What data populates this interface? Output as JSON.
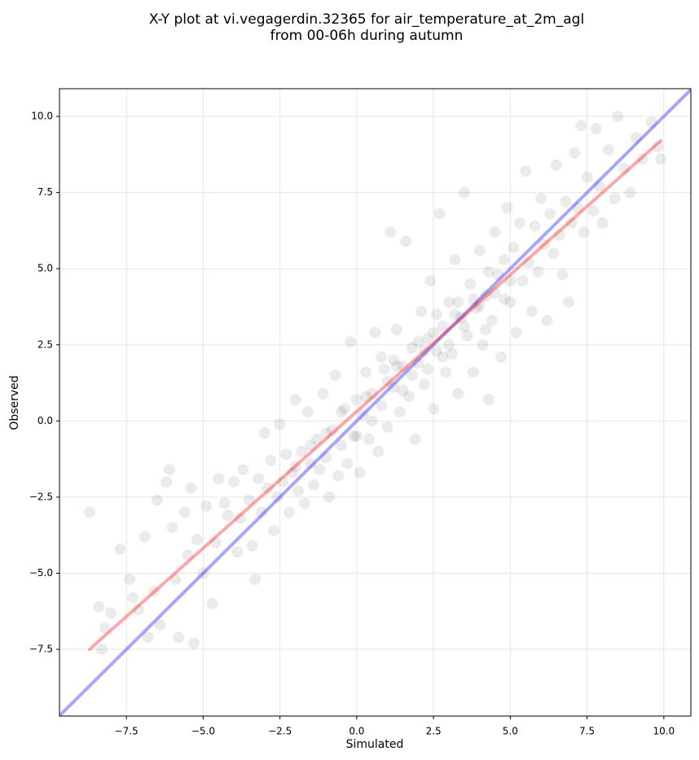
{
  "chart_data": {
    "type": "scatter",
    "title": [
      "X-Y plot at vi.vegagerdin.32365 for air_temperature_at_2m_agl",
      "from 00-06h during autumn"
    ],
    "x_label": "Simulated",
    "y_label": "Observed",
    "xlim": [
      -9.68,
      10.88
    ],
    "ylim": [
      -9.69,
      10.91
    ],
    "xticks": [
      {
        "value": -7.5,
        "label": "−7.5"
      },
      {
        "value": -5,
        "label": "−5.0"
      },
      {
        "value": -2.5,
        "label": "−2.5"
      },
      {
        "value": 0,
        "label": "0.0"
      },
      2.5,
      {
        "value": 5,
        "label": "5.0"
      },
      7.5,
      {
        "value": 10,
        "label": "10.0"
      }
    ],
    "yticks": [
      {
        "value": -7.5,
        "label": "−7.5"
      },
      {
        "value": -5,
        "label": "−5.0"
      },
      {
        "value": -2.5,
        "label": "−2.5"
      },
      {
        "value": 0,
        "label": "0.0"
      },
      2.5,
      {
        "value": 5,
        "label": "5.0"
      },
      7.5,
      {
        "value": 10,
        "label": "10.0"
      }
    ],
    "grid": true,
    "point_color": "#000000",
    "x": [
      -8.7,
      -8.4,
      -8.3,
      -8.2,
      -8.0,
      -7.7,
      -7.4,
      -7.3,
      -7.1,
      -6.9,
      -6.8,
      -6.6,
      -6.5,
      -6.4,
      -6.2,
      -6.1,
      -6.0,
      -5.9,
      -5.8,
      -5.6,
      -5.5,
      -5.4,
      -5.3,
      -5.2,
      -5.0,
      -4.9,
      -4.7,
      -4.6,
      -4.5,
      -4.3,
      -4.2,
      -4.0,
      -3.9,
      -3.8,
      -3.7,
      -3.5,
      -3.4,
      -3.3,
      -3.2,
      -3.1,
      -3.0,
      -2.9,
      -2.8,
      -2.7,
      -2.6,
      -2.5,
      -2.4,
      -2.3,
      -2.2,
      -2.1,
      -2.0,
      -1.9,
      -1.8,
      -1.7,
      -1.6,
      -1.5,
      -1.4,
      -1.3,
      -1.2,
      -1.1,
      -1.0,
      -0.9,
      -0.8,
      -0.7,
      -0.6,
      -0.5,
      -0.4,
      -0.3,
      -0.2,
      -0.1,
      0.0,
      0.1,
      0.2,
      0.3,
      0.4,
      0.5,
      0.6,
      0.7,
      0.8,
      0.9,
      1.0,
      1.1,
      1.2,
      1.3,
      1.4,
      1.5,
      1.6,
      1.7,
      1.8,
      1.9,
      2.0,
      2.1,
      2.2,
      2.3,
      2.4,
      2.5,
      2.6,
      2.7,
      2.8,
      2.9,
      3.0,
      3.1,
      3.2,
      3.3,
      3.4,
      3.5,
      3.6,
      3.7,
      3.8,
      3.9,
      4.0,
      4.1,
      4.2,
      4.3,
      4.4,
      4.5,
      4.6,
      4.7,
      4.8,
      4.9,
      5.0,
      5.1,
      5.2,
      5.3,
      5.4,
      5.5,
      5.6,
      5.7,
      5.8,
      5.9,
      6.0,
      6.1,
      6.2,
      6.3,
      6.4,
      6.5,
      6.6,
      6.7,
      6.8,
      6.9,
      7.0,
      7.1,
      7.2,
      7.3,
      7.4,
      7.5,
      7.7,
      7.8,
      7.9,
      8.0,
      8.2,
      8.4,
      8.5,
      8.7,
      8.9,
      9.1,
      9.3,
      9.6,
      9.8,
      9.9,
      0.5,
      1.0,
      1.5,
      2.0,
      2.5,
      3.0,
      3.5,
      4.0,
      4.5,
      5.0,
      1.2,
      2.2,
      3.2,
      4.2,
      -0.5,
      0.0,
      1.8,
      2.8,
      3.8,
      4.8,
      0.3,
      1.3,
      2.3,
      3.3,
      4.3,
      -1.0,
      -1.5,
      -2.0,
      0.8,
      2.6
    ],
    "y": [
      -3.0,
      -6.1,
      -7.5,
      -6.8,
      -6.3,
      -4.2,
      -5.2,
      -5.8,
      -6.2,
      -3.8,
      -7.1,
      -5.6,
      -2.6,
      -6.7,
      -2.0,
      -1.6,
      -3.5,
      -5.2,
      -7.1,
      -3.0,
      -4.4,
      -2.2,
      -7.3,
      -3.9,
      -5.0,
      -2.8,
      -6.0,
      -4.0,
      -1.9,
      -2.7,
      -3.1,
      -2.0,
      -4.3,
      -3.2,
      -1.6,
      -2.6,
      -4.1,
      -5.2,
      -1.9,
      -3.0,
      -0.4,
      -2.2,
      -1.3,
      -3.6,
      -2.5,
      -0.1,
      -2.0,
      -1.1,
      -3.0,
      -1.7,
      0.7,
      -2.3,
      -1.0,
      -2.7,
      0.3,
      -1.4,
      -2.1,
      -0.6,
      -1.6,
      0.9,
      -1.2,
      -2.5,
      -0.3,
      1.5,
      -1.8,
      -0.8,
      0.4,
      -1.4,
      2.6,
      -0.5,
      0.7,
      -1.7,
      0.2,
      1.6,
      -0.6,
      0.9,
      2.9,
      -1.0,
      0.5,
      1.7,
      -0.2,
      6.2,
      1.1,
      3.0,
      0.3,
      1.8,
      5.9,
      0.8,
      2.4,
      -0.6,
      1.9,
      3.6,
      1.2,
      2.7,
      4.6,
      0.4,
      2.3,
      6.8,
      3.1,
      1.6,
      3.9,
      2.2,
      5.3,
      0.9,
      3.4,
      7.5,
      2.8,
      4.5,
      1.6,
      3.7,
      5.6,
      2.5,
      4.1,
      0.7,
      3.3,
      6.2,
      4.8,
      2.1,
      5.3,
      7.0,
      3.9,
      5.7,
      2.9,
      6.5,
      4.6,
      8.2,
      5.2,
      3.6,
      6.4,
      4.9,
      7.3,
      5.8,
      3.3,
      6.8,
      5.5,
      8.4,
      6.1,
      4.8,
      7.2,
      3.9,
      6.5,
      8.8,
      7.0,
      9.7,
      6.2,
      8.0,
      6.9,
      9.6,
      7.7,
      6.5,
      8.9,
      7.3,
      10.0,
      8.3,
      7.5,
      9.3,
      8.6,
      9.8,
      9.0,
      8.6,
      0.0,
      1.3,
      1.0,
      2.6,
      2.9,
      2.5,
      3.1,
      3.8,
      4.2,
      4.6,
      2.0,
      2.3,
      3.5,
      3.0,
      0.3,
      -0.5,
      1.5,
      2.1,
      4.0,
      4.0,
      0.8,
      1.8,
      1.7,
      3.9,
      4.9,
      -0.4,
      -0.8,
      -1.5,
      2.1,
      3.5
    ],
    "lines": [
      {
        "color": "#0000ff",
        "x": [
          -9.68,
          10.88
        ],
        "y": [
          -9.68,
          10.88
        ]
      },
      {
        "color": "#ff0000",
        "x": [
          -8.7,
          9.9
        ],
        "y": [
          -7.5,
          9.2
        ]
      }
    ]
  }
}
